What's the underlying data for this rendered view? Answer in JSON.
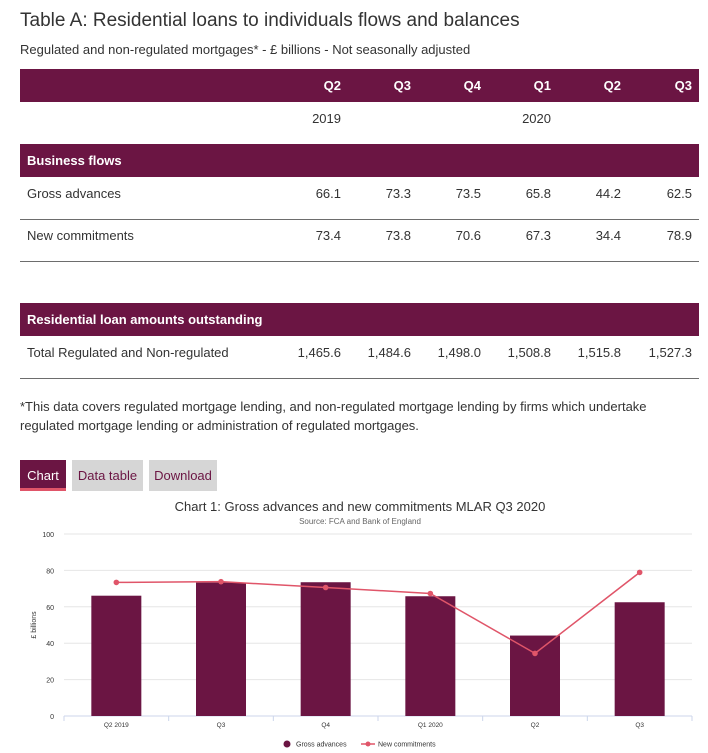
{
  "table": {
    "title": "Table A: Residential loans to individuals flows and balances",
    "subtitle": "Regulated and non-regulated mortgages* - £ billions - Not seasonally adjusted",
    "columns": [
      "Q2",
      "Q3",
      "Q4",
      "Q1",
      "Q2",
      "Q3"
    ],
    "years": [
      {
        "label": "2019",
        "col": 0
      },
      {
        "label": "2020",
        "col": 3
      }
    ],
    "business_flows": {
      "header": "Business flows",
      "rows": [
        {
          "label": "Gross advances",
          "values": [
            "66.1",
            "73.3",
            "73.5",
            "65.8",
            "44.2",
            "62.5"
          ]
        },
        {
          "label": "New commitments",
          "values": [
            "73.4",
            "73.8",
            "70.6",
            "67.3",
            "34.4",
            "78.9"
          ]
        }
      ]
    },
    "outstanding": {
      "header": "Residential loan amounts outstanding",
      "rows": [
        {
          "label": "Total Regulated and Non-regulated",
          "values": [
            "1,465.6",
            "1,484.6",
            "1,498.0",
            "1,508.8",
            "1,515.8",
            "1,527.3"
          ]
        }
      ]
    },
    "footnote": "*This data covers regulated mortgage lending, and non-regulated mortgage lending by firms which undertake regulated mortgage lending or administration of regulated mortgages."
  },
  "tabs": {
    "chart": "Chart",
    "data_table": "Data table",
    "download": "Download"
  },
  "colors": {
    "brand": "#6b1543",
    "line": "#e05569",
    "tab_inactive": "#d6d6d6"
  },
  "chart_data": {
    "type": "bar",
    "title": "Chart 1: Gross advances and new commitments MLAR Q3 2020",
    "subtitle": "Source: FCA and Bank of England",
    "ylabel": "£ billions",
    "xlabel": "",
    "categories": [
      "Q2 2019",
      "Q3",
      "Q4",
      "Q1 2020",
      "Q2",
      "Q3"
    ],
    "ylim": [
      0,
      100
    ],
    "yticks": [
      0,
      20,
      40,
      60,
      80,
      100
    ],
    "grid": true,
    "legend": "bottom",
    "series": [
      {
        "name": "Gross advances",
        "type": "bar",
        "values": [
          66.1,
          73.3,
          73.5,
          65.8,
          44.2,
          62.5
        ]
      },
      {
        "name": "New commitments",
        "type": "line",
        "values": [
          73.4,
          73.8,
          70.6,
          67.3,
          34.4,
          78.9
        ]
      }
    ]
  }
}
